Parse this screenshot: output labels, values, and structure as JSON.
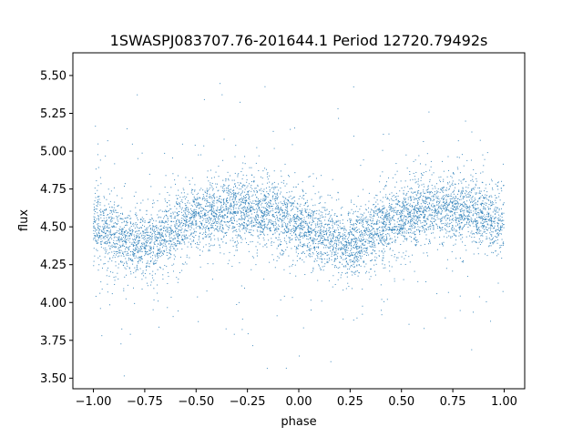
{
  "chart_data": {
    "type": "scatter",
    "title": "1SWASPJ083707.76-201644.1 Period 12720.79492s",
    "xlabel": "phase",
    "ylabel": "flux",
    "xlim": [
      -1.1,
      1.1
    ],
    "ylim": [
      3.43,
      5.65
    ],
    "xticks": [
      -1.0,
      -0.75,
      -0.5,
      -0.25,
      0.0,
      0.25,
      0.5,
      0.75,
      1.0
    ],
    "xtick_labels": [
      "−1.00",
      "−0.75",
      "−0.50",
      "−0.25",
      "0.00",
      "0.25",
      "0.50",
      "0.75",
      "1.00"
    ],
    "yticks": [
      3.5,
      3.75,
      4.0,
      4.25,
      4.5,
      4.75,
      5.0,
      5.25,
      5.5
    ],
    "ytick_labels": [
      "3.50",
      "3.75",
      "4.00",
      "4.25",
      "4.50",
      "4.75",
      "5.00",
      "5.25",
      "5.50"
    ],
    "grid": false,
    "legend": false,
    "marker_color": "#1f77b4",
    "series": [
      {
        "x_range": [
          -1.0,
          1.0
        ],
        "profile": {
          "phase": [
            0.0,
            0.1,
            0.2,
            0.3,
            0.4,
            0.5,
            0.6,
            0.7,
            0.8,
            0.9,
            1.0
          ],
          "mean_flux": [
            4.52,
            4.44,
            4.38,
            4.41,
            4.5,
            4.56,
            4.6,
            4.62,
            4.61,
            4.58,
            4.52
          ]
        },
        "core_scatter": 0.1,
        "flux_range": [
          3.5,
          5.56
        ]
      }
    ]
  }
}
